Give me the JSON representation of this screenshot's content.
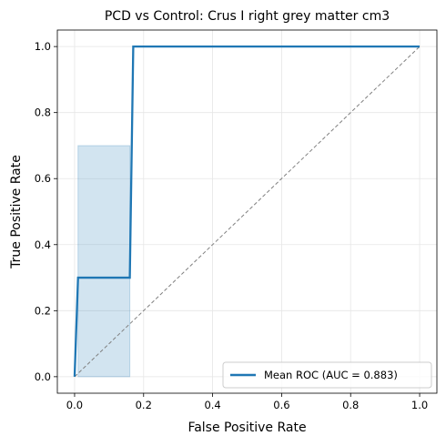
{
  "chart_data": {
    "type": "line",
    "title": "PCD vs Control: Crus I right grey matter cm3",
    "xlabel": "False Positive Rate",
    "ylabel": "True Positive Rate",
    "xlim": [
      -0.05,
      1.05
    ],
    "ylim": [
      -0.05,
      1.05
    ],
    "xticks": [
      0.0,
      0.2,
      0.4,
      0.6,
      0.8,
      1.0
    ],
    "yticks": [
      0.0,
      0.2,
      0.4,
      0.6,
      0.8,
      1.0
    ],
    "xtick_labels": [
      "0.0",
      "0.2",
      "0.4",
      "0.6",
      "0.8",
      "1.0"
    ],
    "ytick_labels": [
      "0.0",
      "0.2",
      "0.4",
      "0.6",
      "0.8",
      "1.0"
    ],
    "grid": true,
    "legend_position": "lower-right",
    "series": [
      {
        "name": "Mean ROC (AUC = 0.883)",
        "color": "#1f77b4",
        "x": [
          0.0,
          0.01,
          0.16,
          0.17,
          1.0
        ],
        "y": [
          0.0,
          0.3,
          0.3,
          1.0,
          1.0
        ]
      }
    ],
    "band": {
      "color": "#1f77b4",
      "opacity": 0.2,
      "x": [
        0.01,
        0.16
      ],
      "lower": [
        0.0,
        0.0
      ],
      "upper": [
        0.7,
        0.7
      ]
    },
    "diagonal": {
      "color": "#808080",
      "x": [
        0.0,
        1.0
      ],
      "y": [
        0.0,
        1.0
      ]
    }
  }
}
